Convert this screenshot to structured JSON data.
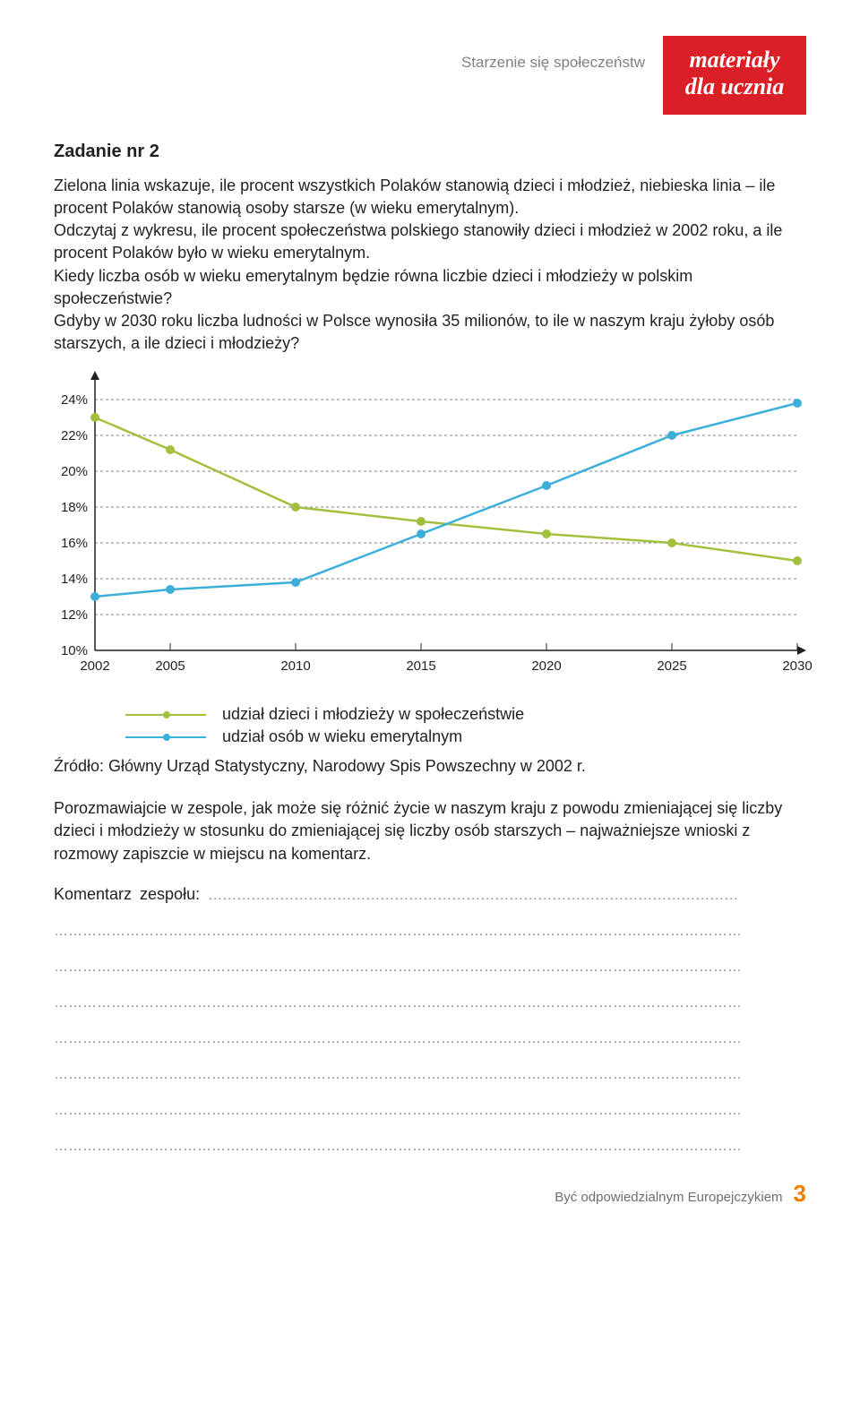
{
  "header": {
    "subtitle": "Starzenie się społeczeństw",
    "badge_line1": "materiały",
    "badge_line2": "dla ucznia"
  },
  "task": {
    "title": "Zadanie nr 2",
    "body": "Zielona linia wskazuje, ile procent wszystkich Polaków stanowią dzieci i młodzież, niebieska linia – ile procent Polaków stanowią osoby starsze (w wieku emerytalnym).\nOdczytaj z wykresu, ile procent społeczeństwa polskiego stanowiły dzieci i młodzież w 2002 roku, a ile procent Polaków było w wieku emerytalnym.\nKiedy liczba osób w wieku emerytalnym będzie równa liczbie dzieci i młodzieży w polskim społeczeństwie?\nGdyby w 2030 roku liczba ludności w Polsce wynosiła 35 milionów, to ile w naszym kraju żyłoby osób starszych, a ile dzieci i młodzieży?"
  },
  "chart": {
    "type": "line",
    "background_color": "#ffffff",
    "grid_color": "#808080",
    "axis_color": "#231f20",
    "x_values": [
      2002,
      2005,
      2010,
      2015,
      2020,
      2025,
      2030
    ],
    "y_ticks": [
      10,
      12,
      14,
      16,
      18,
      20,
      22,
      24
    ],
    "y_axis_suffix": "%",
    "ylim": [
      10,
      25
    ],
    "series": [
      {
        "name": "green",
        "label": "udział dzieci i młodzieży w społeczeństwie",
        "color": "#a2c03d",
        "values": [
          23.0,
          21.2,
          18.0,
          17.2,
          16.5,
          16.0,
          15.0
        ]
      },
      {
        "name": "blue",
        "label": "udział osób w wieku emerytalnym",
        "color": "#3bafda",
        "values": [
          13.0,
          13.4,
          13.8,
          16.5,
          19.2,
          22.0,
          23.8
        ]
      }
    ],
    "marker_radius": 5,
    "line_width": 2.5,
    "tick_fontsize": 15
  },
  "legend": {
    "green": "udział dzieci i młodzieży w społeczeństwie",
    "blue": "udział osób w wieku emerytalnym"
  },
  "source": "Źródło: Główny Urząd Statystyczny, Narodowy Spis Powszechny w 2002 r.",
  "discussion": "Porozmawiajcie w zespole, jak może się różnić życie w naszym kraju z powodu zmieniającej się liczby dzieci i młodzieży w stosunku do zmieniającej się liczby osób starszych – najważniejsze wnioski z rozmowy zapiszcie w miejscu na komentarz.",
  "comment_label": "Komentarz  zespołu: ",
  "dotted_trail_1": "…………………………………………………………………………………………………",
  "dotted_full": "………………………………………………………………………………………………………………………………",
  "footer": {
    "text": "Być odpowiedzialnym Europejczykiem",
    "page": "3"
  }
}
